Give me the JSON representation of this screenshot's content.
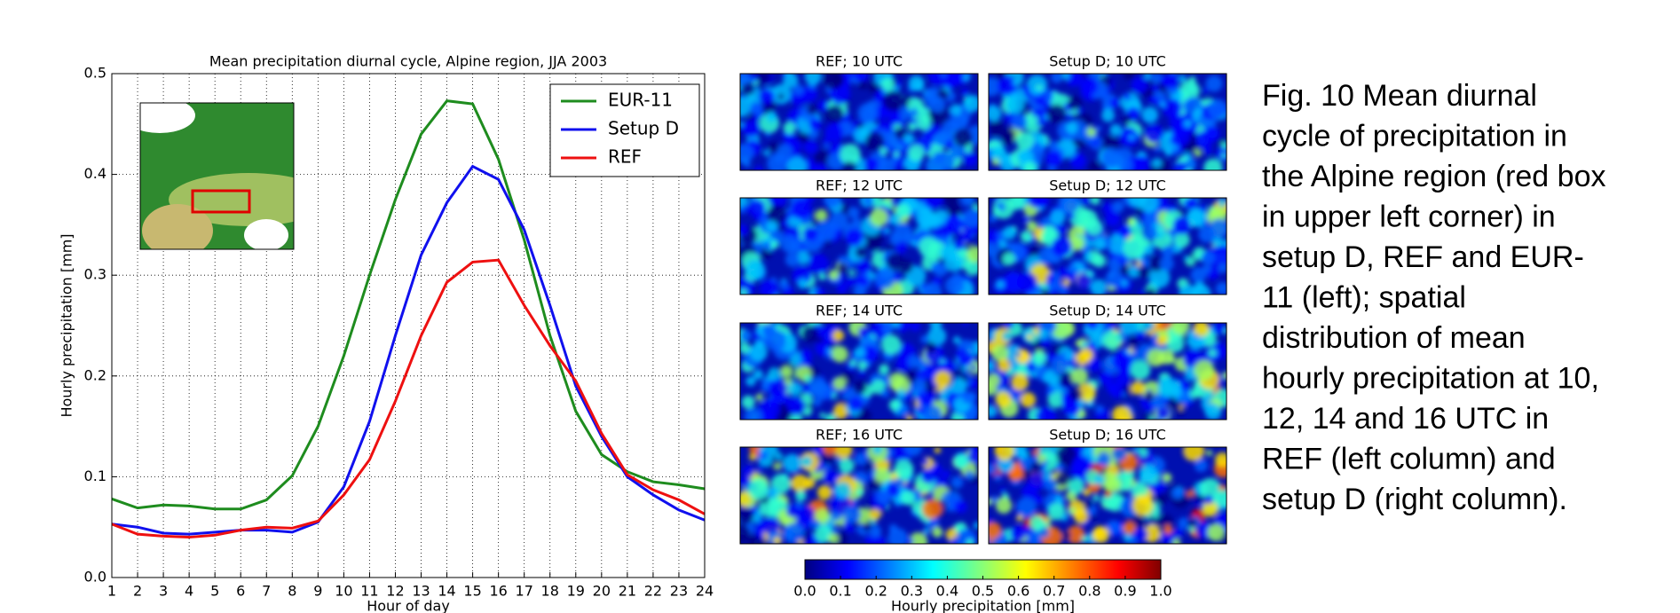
{
  "chart_data": [
    {
      "type": "line",
      "title": "Mean precipitation diurnal cycle, Alpine region, JJA 2003",
      "x_label": "Hour of day",
      "y_label": "Hourly precipitation [mm]",
      "x": [
        1,
        2,
        3,
        4,
        5,
        6,
        7,
        8,
        9,
        10,
        11,
        12,
        13,
        14,
        15,
        16,
        17,
        18,
        19,
        20,
        21,
        22,
        23,
        24
      ],
      "series": [
        {
          "name": "EUR-11",
          "color": "#1e8c1e",
          "values": [
            0.078,
            0.069,
            0.072,
            0.071,
            0.068,
            0.068,
            0.077,
            0.101,
            0.15,
            0.22,
            0.3,
            0.375,
            0.44,
            0.473,
            0.47,
            0.415,
            0.335,
            0.24,
            0.165,
            0.122,
            0.105,
            0.095,
            0.092,
            0.088
          ]
        },
        {
          "name": "Setup D",
          "color": "#1010ee",
          "values": [
            0.053,
            0.05,
            0.044,
            0.043,
            0.045,
            0.047,
            0.047,
            0.045,
            0.055,
            0.09,
            0.155,
            0.24,
            0.32,
            0.372,
            0.408,
            0.395,
            0.345,
            0.27,
            0.19,
            0.14,
            0.1,
            0.082,
            0.067,
            0.057
          ]
        },
        {
          "name": "REF",
          "color": "#ee1010",
          "values": [
            0.053,
            0.043,
            0.041,
            0.04,
            0.042,
            0.047,
            0.05,
            0.049,
            0.056,
            0.082,
            0.117,
            0.175,
            0.24,
            0.293,
            0.313,
            0.315,
            0.27,
            0.23,
            0.195,
            0.143,
            0.102,
            0.087,
            0.077,
            0.063
          ]
        }
      ],
      "xlim": [
        1,
        24
      ],
      "xticks": [
        1,
        2,
        3,
        4,
        5,
        6,
        7,
        8,
        9,
        10,
        11,
        12,
        13,
        14,
        15,
        16,
        17,
        18,
        19,
        20,
        21,
        22,
        23,
        24
      ],
      "ylim": [
        0,
        0.5
      ],
      "yticks": [
        {
          "value": 0,
          "label": "0.0"
        },
        {
          "value": 0.1,
          "label": "0.1"
        },
        {
          "value": 0.2,
          "label": "0.2"
        },
        {
          "value": 0.3,
          "label": "0.3"
        },
        {
          "value": 0.4,
          "label": "0.4"
        },
        {
          "value": 0.5,
          "label": "0.5"
        }
      ],
      "grid": true,
      "legend": "upper right"
    }
  ],
  "maps": {
    "titles": [
      "REF; 10 UTC",
      "Setup D; 10 UTC",
      "REF; 12 UTC",
      "Setup D; 12 UTC",
      "REF; 14 UTC",
      "Setup D; 14 UTC",
      "REF; 16 UTC",
      "Setup D; 16 UTC"
    ],
    "colorbar": {
      "label": "Hourly precipitation [mm]",
      "lim": [
        0,
        1
      ],
      "ticks": [
        {
          "value": 0,
          "label": "0.0"
        },
        {
          "value": 0.1,
          "label": "0.1"
        },
        {
          "value": 0.2,
          "label": "0.2"
        },
        {
          "value": 0.3,
          "label": "0.3"
        },
        {
          "value": 0.4,
          "label": "0.4"
        },
        {
          "value": 0.5,
          "label": "0.5"
        },
        {
          "value": 0.6,
          "label": "0.6"
        },
        {
          "value": 0.7,
          "label": "0.7"
        },
        {
          "value": 0.8,
          "label": "0.8"
        },
        {
          "value": 0.9,
          "label": "0.9"
        },
        {
          "value": 1,
          "label": "1.0"
        }
      ]
    }
  },
  "caption": [
    "Fig. 10 Mean diurnal",
    "cycle of precipitation in",
    "the Alpine region (red box",
    "in upper left corner) in",
    "setup D, REF and EUR-",
    "11 (left); spatial",
    "distribution of mean",
    "hourly precipitation at 10,",
    "12, 14 and 16 UTC in",
    "REF (left column) and",
    "setup D (right column)."
  ]
}
